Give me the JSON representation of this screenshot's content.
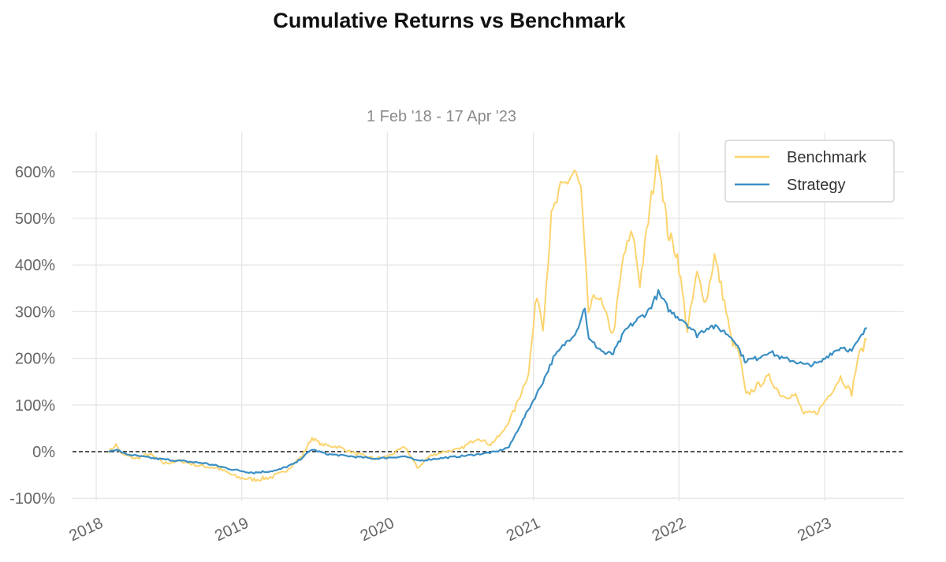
{
  "chart_data": {
    "type": "line",
    "title": "Cumulative Returns vs Benchmark",
    "subtitle": "1 Feb '18 - 17 Apr '23",
    "xlabel": "",
    "ylabel": "",
    "x_ticks": [
      "2018",
      "2019",
      "2020",
      "2021",
      "2022",
      "2023"
    ],
    "y_ticks": [
      -100,
      0,
      100,
      200,
      300,
      400,
      500,
      600
    ],
    "y_tick_labels": [
      "-100%",
      "0%",
      "100%",
      "200%",
      "300%",
      "400%",
      "500%",
      "600%"
    ],
    "ylim": [
      -100,
      680
    ],
    "xlim": [
      "2017-11-15",
      "2023-07-15"
    ],
    "grid": true,
    "legend_position": "top-right",
    "zero_line": true,
    "series": [
      {
        "name": "Benchmark",
        "color": "#fcd46e",
        "points": [
          [
            "2018-02-01",
            0
          ],
          [
            "2018-02-20",
            15
          ],
          [
            "2018-03-05",
            -5
          ],
          [
            "2018-04-10",
            -15
          ],
          [
            "2018-05-15",
            -5
          ],
          [
            "2018-06-20",
            -25
          ],
          [
            "2018-08-01",
            -20
          ],
          [
            "2018-09-15",
            -30
          ],
          [
            "2018-11-01",
            -35
          ],
          [
            "2018-12-20",
            -55
          ],
          [
            "2019-02-01",
            -60
          ],
          [
            "2019-03-15",
            -55
          ],
          [
            "2019-04-15",
            -45
          ],
          [
            "2019-06-01",
            -10
          ],
          [
            "2019-06-26",
            30
          ],
          [
            "2019-07-20",
            15
          ],
          [
            "2019-09-01",
            10
          ],
          [
            "2019-10-15",
            -5
          ],
          [
            "2019-12-01",
            -15
          ],
          [
            "2020-01-01",
            -10
          ],
          [
            "2020-02-15",
            10
          ],
          [
            "2020-03-16",
            -35
          ],
          [
            "2020-04-15",
            -10
          ],
          [
            "2020-05-20",
            0
          ],
          [
            "2020-07-01",
            5
          ],
          [
            "2020-08-15",
            30
          ],
          [
            "2020-09-15",
            15
          ],
          [
            "2020-10-15",
            40
          ],
          [
            "2020-11-15",
            90
          ],
          [
            "2020-12-20",
            170
          ],
          [
            "2021-01-10",
            340
          ],
          [
            "2021-01-25",
            270
          ],
          [
            "2021-02-15",
            500
          ],
          [
            "2021-03-10",
            560
          ],
          [
            "2021-04-14",
            600
          ],
          [
            "2021-04-30",
            560
          ],
          [
            "2021-05-19",
            300
          ],
          [
            "2021-06-10",
            340
          ],
          [
            "2021-07-20",
            250
          ],
          [
            "2021-08-15",
            420
          ],
          [
            "2021-09-07",
            470
          ],
          [
            "2021-09-25",
            360
          ],
          [
            "2021-10-20",
            520
          ],
          [
            "2021-11-10",
            640
          ],
          [
            "2021-12-04",
            470
          ],
          [
            "2021-12-28",
            420
          ],
          [
            "2022-01-22",
            260
          ],
          [
            "2022-02-15",
            380
          ],
          [
            "2022-03-10",
            320
          ],
          [
            "2022-03-31",
            420
          ],
          [
            "2022-04-25",
            320
          ],
          [
            "2022-05-12",
            240
          ],
          [
            "2022-06-01",
            210
          ],
          [
            "2022-06-18",
            120
          ],
          [
            "2022-07-15",
            140
          ],
          [
            "2022-08-15",
            160
          ],
          [
            "2022-09-15",
            120
          ],
          [
            "2022-10-20",
            120
          ],
          [
            "2022-11-10",
            80
          ],
          [
            "2022-12-15",
            85
          ],
          [
            "2023-01-15",
            125
          ],
          [
            "2023-02-10",
            160
          ],
          [
            "2023-03-10",
            125
          ],
          [
            "2023-03-25",
            200
          ],
          [
            "2023-04-17",
            240
          ]
        ]
      },
      {
        "name": "Strategy",
        "color": "#3a8fc4",
        "points": [
          [
            "2018-02-01",
            0
          ],
          [
            "2018-02-20",
            5
          ],
          [
            "2018-03-15",
            -5
          ],
          [
            "2018-04-20",
            -10
          ],
          [
            "2018-06-01",
            -15
          ],
          [
            "2018-08-01",
            -20
          ],
          [
            "2018-10-01",
            -25
          ],
          [
            "2018-12-20",
            -40
          ],
          [
            "2019-02-01",
            -45
          ],
          [
            "2019-04-01",
            -40
          ],
          [
            "2019-05-15",
            -25
          ],
          [
            "2019-06-26",
            5
          ],
          [
            "2019-08-01",
            -5
          ],
          [
            "2019-10-01",
            -10
          ],
          [
            "2019-12-01",
            -15
          ],
          [
            "2020-02-15",
            -10
          ],
          [
            "2020-03-16",
            -20
          ],
          [
            "2020-05-01",
            -15
          ],
          [
            "2020-07-01",
            -10
          ],
          [
            "2020-08-20",
            -5
          ],
          [
            "2020-10-01",
            0
          ],
          [
            "2020-11-01",
            10
          ],
          [
            "2020-12-01",
            60
          ],
          [
            "2021-01-01",
            110
          ],
          [
            "2021-01-25",
            150
          ],
          [
            "2021-02-20",
            200
          ],
          [
            "2021-03-20",
            230
          ],
          [
            "2021-04-20",
            260
          ],
          [
            "2021-05-10",
            310
          ],
          [
            "2021-05-20",
            240
          ],
          [
            "2021-06-30",
            210
          ],
          [
            "2021-07-20",
            210
          ],
          [
            "2021-08-20",
            260
          ],
          [
            "2021-09-15",
            280
          ],
          [
            "2021-10-15",
            300
          ],
          [
            "2021-11-10",
            340
          ],
          [
            "2021-12-10",
            300
          ],
          [
            "2022-01-15",
            280
          ],
          [
            "2022-02-15",
            250
          ],
          [
            "2022-03-20",
            270
          ],
          [
            "2022-04-20",
            260
          ],
          [
            "2022-05-20",
            240
          ],
          [
            "2022-06-15",
            195
          ],
          [
            "2022-07-15",
            200
          ],
          [
            "2022-08-15",
            215
          ],
          [
            "2022-09-15",
            200
          ],
          [
            "2022-10-15",
            195
          ],
          [
            "2022-11-15",
            185
          ],
          [
            "2022-12-20",
            190
          ],
          [
            "2023-01-15",
            210
          ],
          [
            "2023-02-15",
            225
          ],
          [
            "2023-03-10",
            215
          ],
          [
            "2023-03-25",
            235
          ],
          [
            "2023-04-17",
            265
          ]
        ]
      }
    ]
  }
}
